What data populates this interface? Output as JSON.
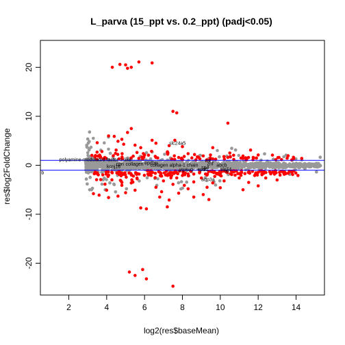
{
  "chart_data": {
    "type": "scatter",
    "title": "L_parva (15_ppt vs. 0.2_ppt) (padj<0.05)",
    "xlabel": "log2(res$baseMean)",
    "ylabel": "res$log2FoldChange",
    "xlim": [
      0.5,
      15.5
    ],
    "ylim": [
      -26.5,
      25.5
    ],
    "xticks": [
      2,
      4,
      6,
      8,
      10,
      12,
      14
    ],
    "yticks": [
      -20,
      -10,
      0,
      10,
      20
    ],
    "grid": false,
    "hlines": [
      1,
      -1
    ],
    "colors": {
      "not_significant": "#999999",
      "significant": "#ff0000",
      "threshold_line": "#0000ff"
    },
    "gray_cloud": {
      "x_range": [
        2.9,
        15.3
      ],
      "typical_spread": 2.0,
      "max_spread": 7.0
    },
    "series": [
      {
        "color": "#ff0000",
        "points": [
          [
            4.3,
            20.0
          ],
          [
            4.7,
            20.6
          ],
          [
            5.0,
            20.5
          ],
          [
            5.3,
            20.0
          ],
          [
            5.7,
            21.1
          ],
          [
            6.4,
            20.9
          ],
          [
            5.1,
            19.8
          ],
          [
            7.5,
            11.0
          ],
          [
            7.7,
            10.7
          ],
          [
            10.4,
            8.6
          ],
          [
            5.2,
            -21.8
          ],
          [
            5.5,
            -22.5
          ],
          [
            5.9,
            -21.3
          ],
          [
            6.1,
            -23.2
          ],
          [
            7.5,
            -24.7
          ],
          [
            5.8,
            -8.7
          ],
          [
            6.1,
            -8.9
          ],
          [
            7.2,
            -8.5
          ],
          [
            8.6,
            -6.5
          ],
          [
            9.4,
            -7.0
          ],
          [
            9.1,
            -6.0
          ],
          [
            4.1,
            -6.6
          ],
          [
            4.6,
            -6.3
          ],
          [
            5.0,
            -5.6
          ],
          [
            5.5,
            -5.1
          ],
          [
            6.9,
            -5.4
          ],
          [
            7.8,
            -5.7
          ],
          [
            4.1,
            6.0
          ],
          [
            4.4,
            5.9
          ],
          [
            4.8,
            5.3
          ],
          [
            5.1,
            6.7
          ],
          [
            5.3,
            7.5
          ],
          [
            5.5,
            4.1
          ],
          [
            6.4,
            5.1
          ],
          [
            7.3,
            4.0
          ],
          [
            8.0,
            3.8
          ],
          [
            4.9,
            4.3
          ],
          [
            5.8,
            3.6
          ],
          [
            6.6,
            4.5
          ],
          [
            7.6,
            5.1
          ],
          [
            4.6,
            4.9
          ],
          [
            9.6,
            3.6
          ],
          [
            10.5,
            2.5
          ],
          [
            11.6,
            3.1
          ],
          [
            12.0,
            2.1
          ],
          [
            13.1,
            1.6
          ],
          [
            14.3,
            1.4
          ],
          [
            10.2,
            -3.2
          ],
          [
            11.0,
            -2.6
          ],
          [
            11.5,
            -3.5
          ],
          [
            12.4,
            -2.6
          ],
          [
            13.0,
            -3.0
          ],
          [
            12.0,
            -4.2
          ],
          [
            14.1,
            -2.1
          ],
          [
            6.6,
            -4.5
          ],
          [
            7.0,
            -3.2
          ],
          [
            7.5,
            -3.9
          ],
          [
            8.1,
            -4.1
          ],
          [
            8.6,
            -3.4
          ],
          [
            9.0,
            -2.6
          ],
          [
            9.3,
            -4.5
          ],
          [
            9.6,
            -3.6
          ],
          [
            6.0,
            2.1
          ],
          [
            6.6,
            1.6
          ],
          [
            7.2,
            2.6
          ],
          [
            7.8,
            1.6
          ],
          [
            8.5,
            1.5
          ],
          [
            9.1,
            1.9
          ],
          [
            9.6,
            1.3
          ],
          [
            10.4,
            1.6
          ],
          [
            11.2,
            1.4
          ],
          [
            6.3,
            -1.6
          ],
          [
            6.9,
            -2.2
          ],
          [
            7.4,
            -1.5
          ],
          [
            8.0,
            -2.1
          ],
          [
            8.6,
            -1.8
          ],
          [
            9.3,
            -2.0
          ],
          [
            9.9,
            -1.6
          ],
          [
            10.6,
            -1.9
          ],
          [
            11.3,
            -1.7
          ],
          [
            12.2,
            -1.8
          ],
          [
            5.3,
            -3.6
          ],
          [
            5.6,
            -2.6
          ],
          [
            4.8,
            -4.1
          ],
          [
            4.0,
            -5.1
          ],
          [
            3.6,
            -6.1
          ],
          [
            3.3,
            -5.8
          ],
          [
            4.5,
            3.1
          ],
          [
            5.6,
            2.6
          ],
          [
            3.9,
            1.6
          ],
          [
            3.5,
            4.6
          ],
          [
            6.8,
            -6.5
          ],
          [
            7.3,
            -7.1
          ],
          [
            8.3,
            -4.8
          ],
          [
            10.0,
            -4.6
          ],
          [
            11.2,
            -5.0
          ]
        ]
      }
    ],
    "annotations": [
      {
        "label": "slc24a5",
        "x": 7.3,
        "y": 4.2
      },
      {
        "label": "polyamine-modulated factor 1-like",
        "x": 1.5,
        "y": 0.8
      },
      {
        "label": "cpn",
        "x": 4.5,
        "y": -0.1
      },
      {
        "label": "collagen",
        "x": 5.0,
        "y": -0.1
      },
      {
        "label": "epd3b",
        "x": 6.0,
        "y": 0.1
      },
      {
        "label": "collagen alpha-1 chain",
        "x": 6.3,
        "y": -0.3
      },
      {
        "label": "rnf",
        "x": 9.2,
        "y": 0.6
      },
      {
        "label": "znf",
        "x": 9.3,
        "y": 0.0
      },
      {
        "label": "kcnj16",
        "x": 4.0,
        "y": -0.6
      },
      {
        "label": "abcb",
        "x": 9.8,
        "y": -0.3
      },
      {
        "label": "slc34",
        "x": 10.0,
        "y": -1.1
      },
      {
        "label": "sp4",
        "x": 9.0,
        "y": -0.8
      },
      {
        "label": "atp6v0",
        "x": 7.8,
        "y": -1.3
      },
      {
        "label": "epdb",
        "x": 8.8,
        "y": -1.2
      },
      {
        "label": "aqp3a",
        "x": 9.0,
        "y": -3.2
      },
      {
        "label": "sp",
        "x": 10.2,
        "y": -1.4
      },
      {
        "label": "b",
        "x": 0.55,
        "y": -1.8
      }
    ]
  }
}
